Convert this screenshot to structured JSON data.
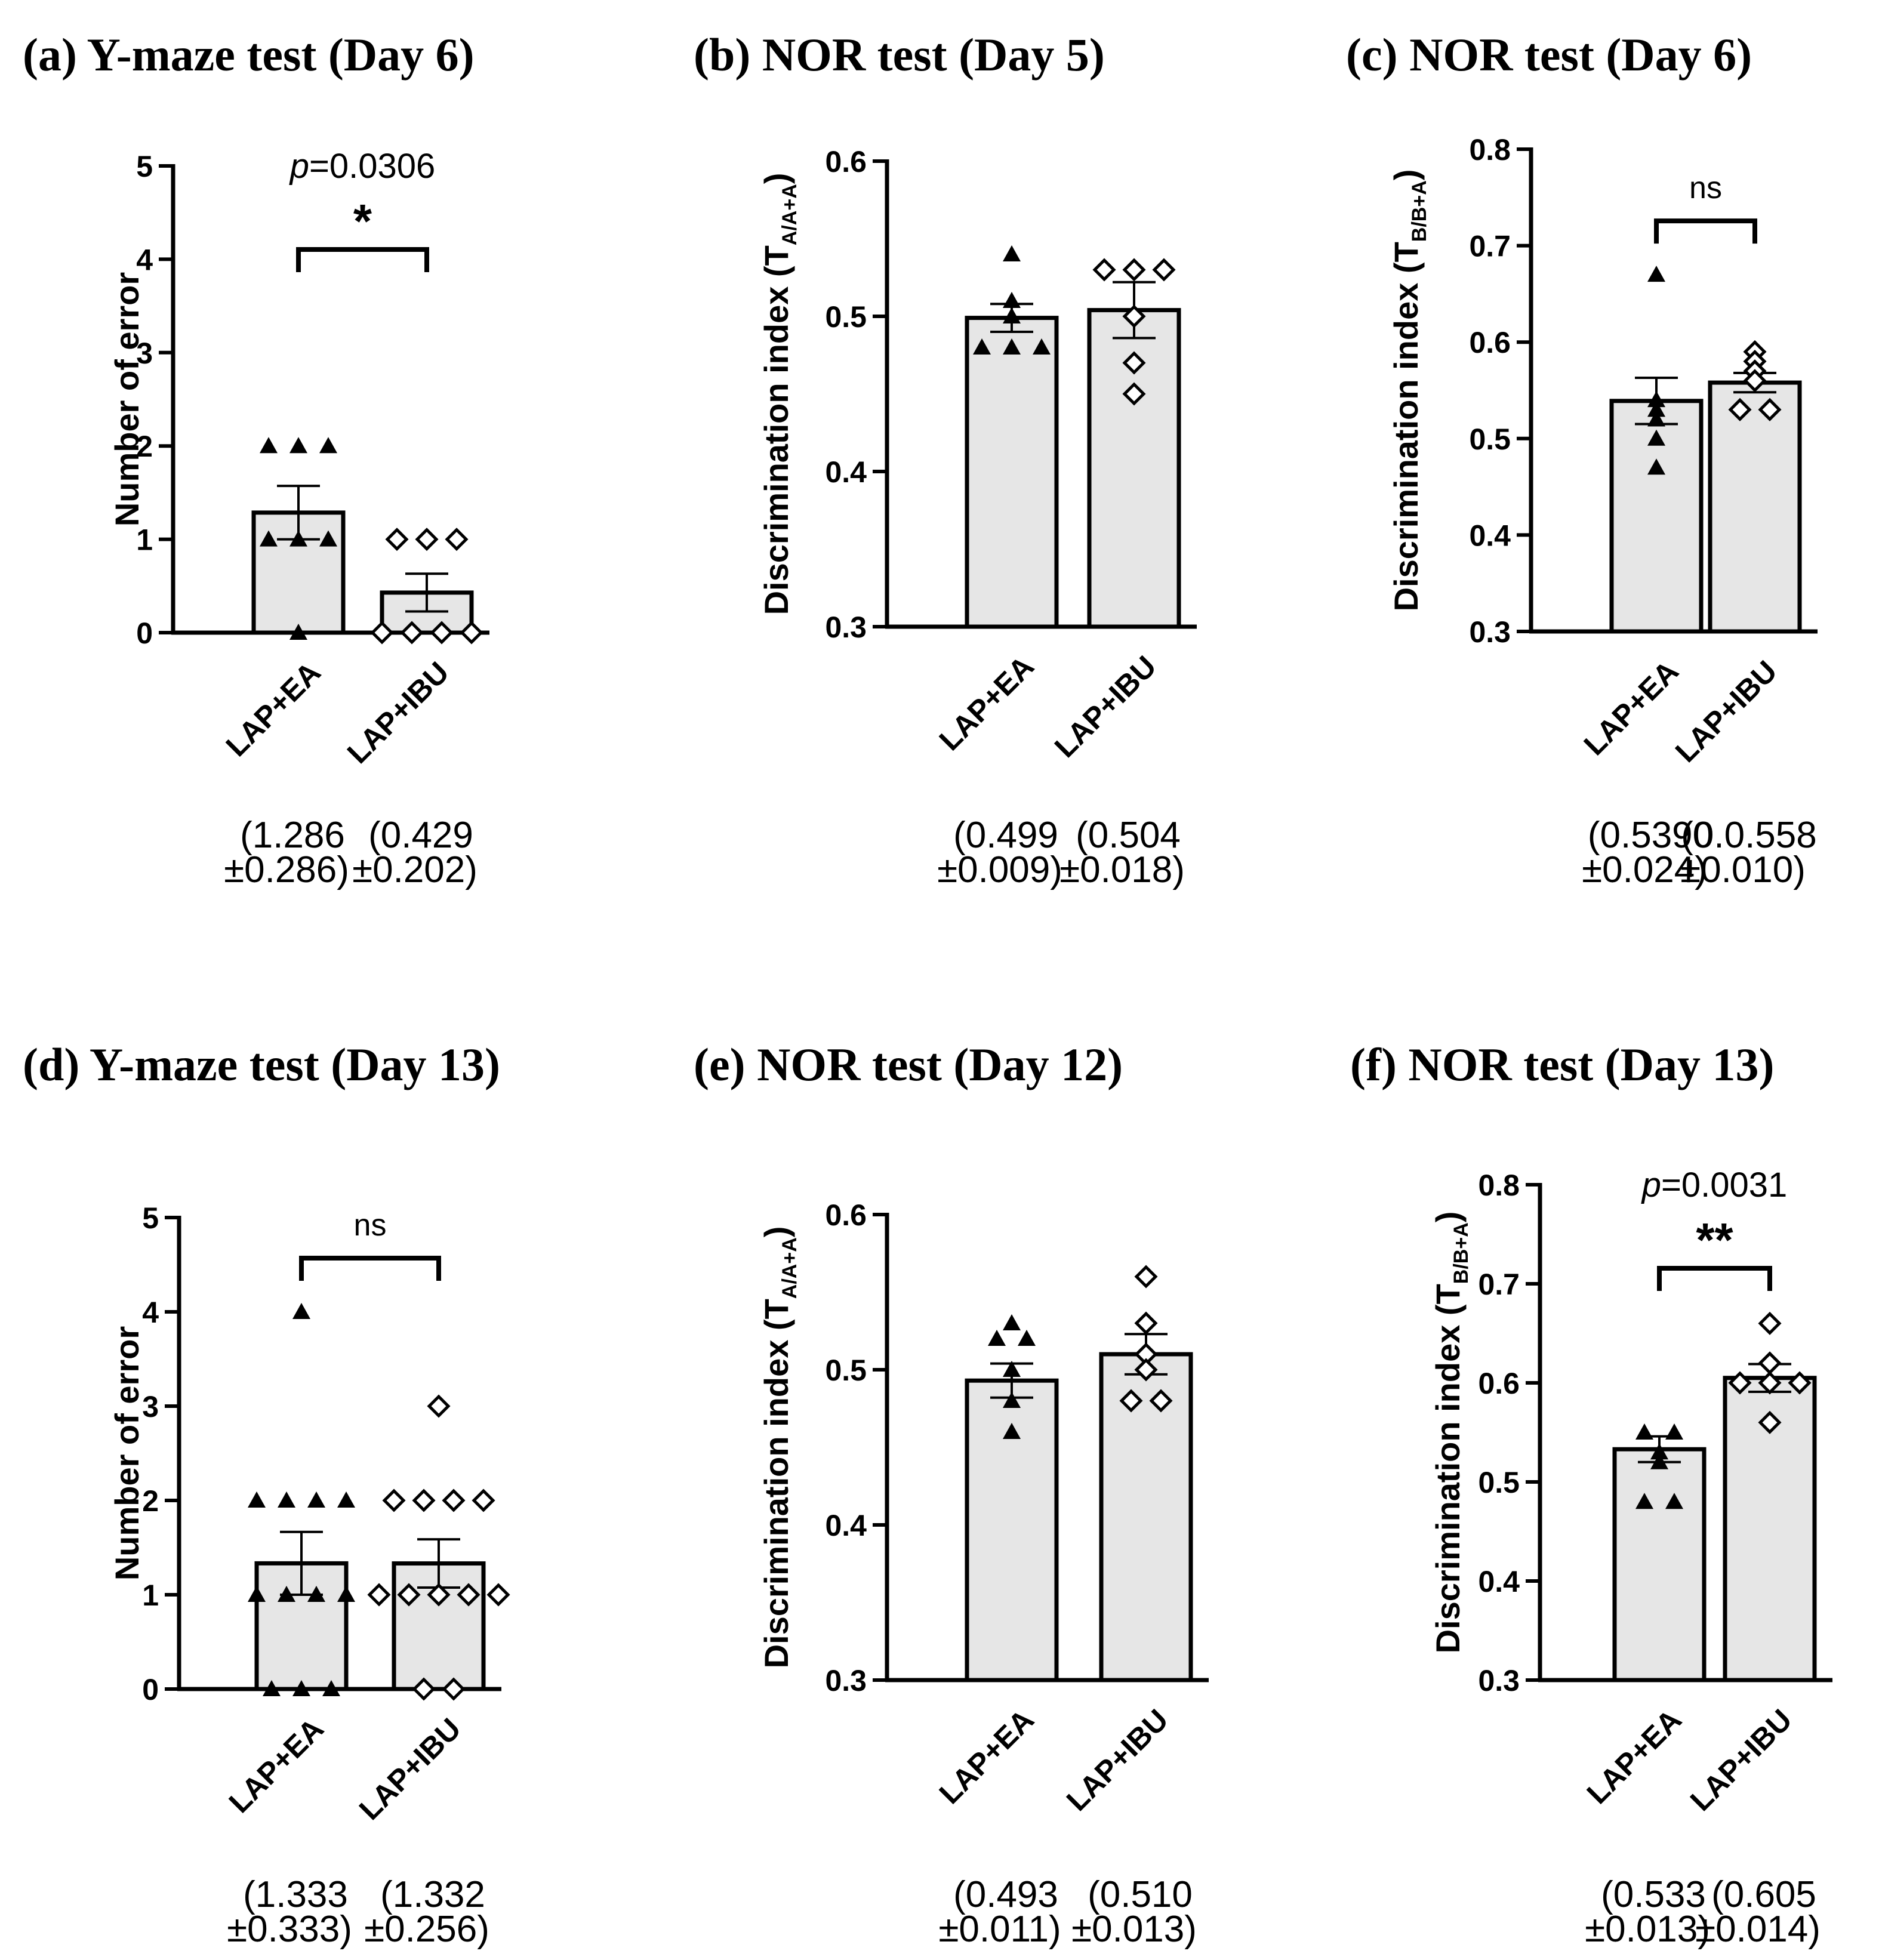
{
  "chart_data": [
    {
      "panel": "a",
      "type": "bar",
      "title": "(a) Y-maze test (Day 6)",
      "ylabel": "Number of error",
      "ylabel_sub": "",
      "ylim": [
        0,
        5
      ],
      "yticks": [
        0,
        1,
        2,
        3,
        4,
        5
      ],
      "ytick_labels": [
        "0",
        "1",
        "2",
        "3",
        "4",
        "5"
      ],
      "categories": [
        "LAP+EA",
        "LAP+IBU"
      ],
      "means": [
        1.286,
        0.429
      ],
      "sems": [
        0.286,
        0.202
      ],
      "points": [
        [
          2,
          2,
          2,
          1,
          1,
          1,
          0
        ],
        [
          1,
          1,
          1,
          0,
          0,
          0,
          0
        ]
      ],
      "markers": [
        "triangle",
        "diamond"
      ],
      "summary": [
        {
          "line1": "(1.286",
          "line2": "±0.286)"
        },
        {
          "line1": "(0.429",
          "line2": "±0.202)"
        }
      ],
      "comparison": {
        "pvalue_prefix": "p",
        "pvalue_rest": "=0.0306",
        "label": "*"
      }
    },
    {
      "panel": "b",
      "type": "bar",
      "title": "(b) NOR test (Day 5)",
      "ylabel": "Discrimination index (T",
      "ylabel_sub": "A/A+A",
      "ylim": [
        0.3,
        0.6
      ],
      "yticks": [
        0.3,
        0.4,
        0.5,
        0.6
      ],
      "ytick_labels": [
        "0.3",
        "0.4",
        "0.5",
        "0.6"
      ],
      "categories": [
        "LAP+EA",
        "LAP+IBU"
      ],
      "means": [
        0.499,
        0.504
      ],
      "sems": [
        0.009,
        0.018
      ],
      "points": [
        [
          0.54,
          0.51,
          0.5,
          0.48,
          0.48,
          0.48
        ],
        [
          0.53,
          0.53,
          0.53,
          0.5,
          0.47,
          0.45
        ]
      ],
      "markers": [
        "triangle",
        "diamond"
      ],
      "summary": [
        {
          "line1": "(0.499",
          "line2": "±0.009)"
        },
        {
          "line1": "(0.504",
          "line2": "±0.018)"
        }
      ],
      "comparison": null
    },
    {
      "panel": "c",
      "type": "bar",
      "title": "(c) NOR test (Day 6)",
      "ylabel": "Discrimination index (T",
      "ylabel_sub": "B/B+A",
      "ylim": [
        0.3,
        0.8
      ],
      "yticks": [
        0.3,
        0.4,
        0.5,
        0.6,
        0.7,
        0.8
      ],
      "ytick_labels": [
        "0.3",
        "0.4",
        "0.5",
        "0.6",
        "0.7",
        "0.8"
      ],
      "categories": [
        "LAP+EA",
        "LAP+IBU"
      ],
      "means": [
        0.539,
        0.558
      ],
      "sems": [
        0.024,
        0.01
      ],
      "points": [
        [
          0.67,
          0.54,
          0.53,
          0.52,
          0.5,
          0.47
        ],
        [
          0.59,
          0.58,
          0.57,
          0.56,
          0.53,
          0.53
        ]
      ],
      "markers": [
        "triangle",
        "diamond"
      ],
      "summary": [
        {
          "line1": "(0.5390",
          "line2": "±0.024)"
        },
        {
          "line1": "(0.0.558",
          "line2": "±0.010)"
        }
      ],
      "comparison": {
        "pvalue_prefix": "",
        "pvalue_rest": "",
        "label": "ns"
      }
    },
    {
      "panel": "d",
      "type": "bar",
      "title": "(d) Y-maze test (Day 13)",
      "ylabel": "Number of error",
      "ylabel_sub": "",
      "ylim": [
        0,
        5
      ],
      "yticks": [
        0,
        1,
        2,
        3,
        4,
        5
      ],
      "ytick_labels": [
        "0",
        "1",
        "2",
        "3",
        "4",
        "5"
      ],
      "categories": [
        "LAP+EA",
        "LAP+IBU"
      ],
      "means": [
        1.333,
        1.332
      ],
      "sems": [
        0.333,
        0.256
      ],
      "points": [
        [
          4,
          2,
          2,
          2,
          2,
          1,
          1,
          1,
          1,
          0,
          0,
          0
        ],
        [
          3,
          2,
          2,
          2,
          2,
          1,
          1,
          1,
          1,
          1,
          0,
          0
        ]
      ],
      "markers": [
        "triangle",
        "diamond"
      ],
      "summary": [
        {
          "line1": "(1.333",
          "line2": "±0.333)"
        },
        {
          "line1": "(1.332",
          "line2": "±0.256)"
        }
      ],
      "comparison": {
        "pvalue_prefix": "",
        "pvalue_rest": "",
        "label": "ns"
      }
    },
    {
      "panel": "e",
      "type": "bar",
      "title": "(e) NOR test (Day 12)",
      "ylabel": "Discrimination index (T",
      "ylabel_sub": "A/A+A",
      "ylim": [
        0.3,
        0.6
      ],
      "yticks": [
        0.3,
        0.4,
        0.5,
        0.6
      ],
      "ytick_labels": [
        "0.3",
        "0.4",
        "0.5",
        "0.6"
      ],
      "categories": [
        "LAP+EA",
        "LAP+IBU"
      ],
      "means": [
        0.493,
        0.51
      ],
      "sems": [
        0.011,
        0.013
      ],
      "points": [
        [
          0.52,
          0.53,
          0.52,
          0.5,
          0.48,
          0.46
        ],
        [
          0.56,
          0.53,
          0.51,
          0.5,
          0.48,
          0.48
        ]
      ],
      "markers": [
        "triangle",
        "diamond"
      ],
      "summary": [
        {
          "line1": "(0.493",
          "line2": "±0.011)"
        },
        {
          "line1": "(0.510",
          "line2": "±0.013)"
        }
      ],
      "comparison": null
    },
    {
      "panel": "f",
      "type": "bar",
      "title": "(f) NOR test (Day 13)",
      "ylabel": "Discrimination index (T",
      "ylabel_sub": "B/B+A",
      "ylim": [
        0.3,
        0.8
      ],
      "yticks": [
        0.3,
        0.4,
        0.5,
        0.6,
        0.7,
        0.8
      ],
      "ytick_labels": [
        "0.3",
        "0.4",
        "0.5",
        "0.6",
        "0.7",
        "0.8"
      ],
      "categories": [
        "LAP+EA",
        "LAP+IBU"
      ],
      "means": [
        0.533,
        0.605
      ],
      "sems": [
        0.013,
        0.014
      ],
      "points": [
        [
          0.55,
          0.55,
          0.53,
          0.52,
          0.48,
          0.48
        ],
        [
          0.66,
          0.62,
          0.6,
          0.6,
          0.6,
          0.56
        ]
      ],
      "markers": [
        "triangle",
        "diamond"
      ],
      "summary": [
        {
          "line1": "(0.533",
          "line2": "±0.013)"
        },
        {
          "line1": "(0.605",
          "line2": "±0.014)"
        }
      ],
      "comparison": {
        "pvalue_prefix": "p",
        "pvalue_rest": "=0.0031",
        "label": "**"
      }
    }
  ]
}
